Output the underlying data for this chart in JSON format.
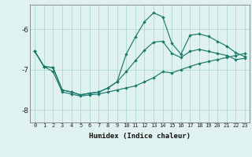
{
  "xlabel": "Humidex (Indice chaleur)",
  "background_color": "#e0f2f0",
  "grid_color": "#b0d8d4",
  "line_color": "#1a7a6a",
  "x": [
    0,
    1,
    2,
    3,
    4,
    5,
    6,
    7,
    8,
    9,
    10,
    11,
    12,
    13,
    14,
    15,
    16,
    17,
    18,
    19,
    20,
    21,
    22,
    23
  ],
  "line_top": [
    -6.55,
    -6.92,
    -6.95,
    -7.5,
    -7.55,
    -7.62,
    -7.58,
    -7.55,
    -7.45,
    -7.3,
    -6.62,
    -6.2,
    -5.82,
    -5.6,
    -5.7,
    -6.35,
    -6.62,
    -6.15,
    -6.12,
    -6.18,
    -6.3,
    -6.42,
    -6.58,
    -6.68
  ],
  "line_mid": [
    -6.55,
    -6.92,
    -6.95,
    -7.5,
    -7.55,
    -7.62,
    -7.58,
    -7.55,
    -7.45,
    -7.3,
    -7.05,
    -6.78,
    -6.52,
    -6.32,
    -6.3,
    -6.6,
    -6.7,
    -6.55,
    -6.5,
    -6.55,
    -6.6,
    -6.65,
    -6.75,
    -6.72
  ],
  "line_bot": [
    -6.55,
    -6.92,
    -7.05,
    -7.55,
    -7.6,
    -7.65,
    -7.62,
    -7.6,
    -7.55,
    -7.5,
    -7.45,
    -7.4,
    -7.3,
    -7.2,
    -7.05,
    -7.08,
    -7.0,
    -6.92,
    -6.85,
    -6.8,
    -6.75,
    -6.7,
    -6.65,
    -6.6
  ],
  "ylim": [
    -8.3,
    -5.4
  ],
  "yticks": [
    -8.0,
    -7.0,
    -6.0
  ],
  "figsize": [
    3.2,
    2.0
  ],
  "dpi": 100
}
